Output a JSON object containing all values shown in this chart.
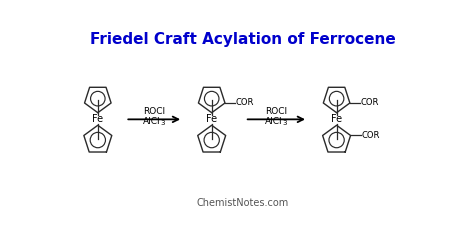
{
  "title": "Friedel Craft Acylation of Ferrocene",
  "title_color": "#0000CC",
  "title_fontsize": 11,
  "background_color": "#FFFFFF",
  "watermark": "ChemistNotes.com",
  "watermark_color": "#555555",
  "watermark_fontsize": 7,
  "line_color": "#2a2a2a",
  "text_color": "#000000",
  "fe_label": "Fe",
  "cor_label": "COR",
  "reagent_line1": "ROCl",
  "reagent_line2": "AlCl",
  "reagent_sub": "3"
}
